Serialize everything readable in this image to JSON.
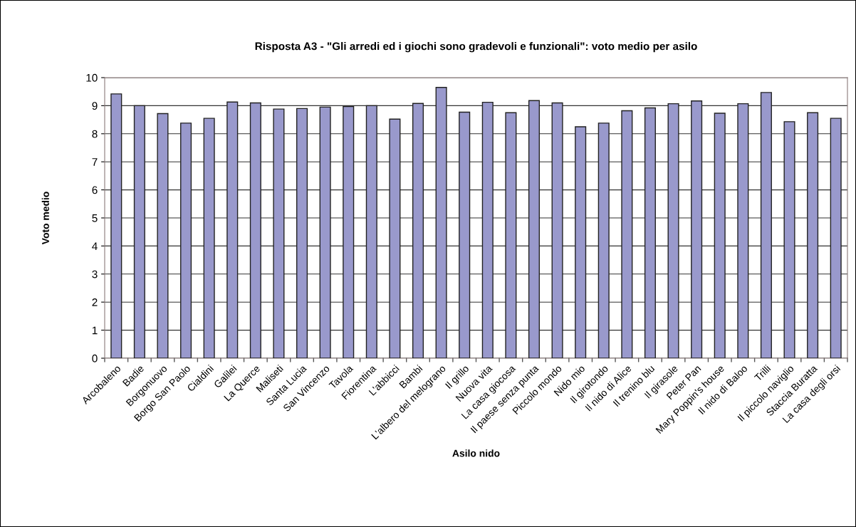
{
  "chart_data": {
    "type": "bar",
    "title": "Risposta A3 - \"Gli arredi ed i giochi sono gradevoli e funzionali\": voto medio per asilo",
    "xlabel": "Asilo nido",
    "ylabel": "Voto medio",
    "categories": [
      "Arcobaleno",
      "Badie",
      "Borgonuovo",
      "Borgo San Paolo",
      "Cialdini",
      "Galilei",
      "La Querce",
      "Maliseti",
      "Santa Lucia",
      "San Vincenzo",
      "Tavola",
      "Fiorentina",
      "L'abbicci",
      "Bambi",
      "L'albero del melograno",
      "Il grillo",
      "Nuova vita",
      "La casa giocosa",
      "Il paese senza punta",
      "Piccolo mondo",
      "Nido mio",
      "Il girotondo",
      "Il nido di Alice",
      "Il trenino blu",
      "Il girasole",
      "Peter Pan",
      "Mary Poppin's house",
      "Il nido di Baloo",
      "Trilli",
      "Il piccolo naviglio",
      "Staccia Buratta",
      "La casa degli orsi"
    ],
    "values": [
      9.42,
      9.0,
      8.72,
      8.38,
      8.55,
      9.13,
      9.1,
      8.88,
      8.9,
      8.95,
      8.97,
      9.0,
      8.52,
      9.08,
      9.65,
      8.77,
      9.12,
      8.75,
      9.18,
      9.1,
      8.25,
      8.38,
      8.82,
      8.92,
      9.07,
      9.17,
      8.73,
      9.07,
      9.47,
      8.43,
      8.75,
      8.55
    ],
    "color": "#9999cc",
    "ylim": [
      0,
      10
    ],
    "yticks": [
      0,
      1,
      2,
      3,
      4,
      5,
      6,
      7,
      8,
      9,
      10
    ],
    "grid": "y"
  }
}
